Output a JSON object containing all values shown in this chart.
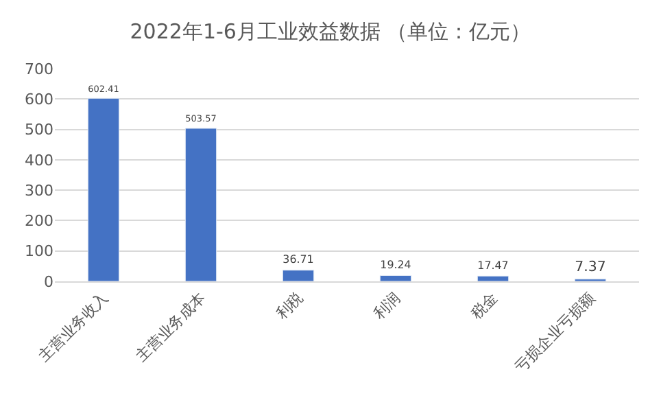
{
  "chart_data": {
    "type": "bar",
    "title": "2022年1-6月工业效益数据 （单位：亿元）",
    "categories": [
      "主营业务收入",
      "主营业务成本",
      "利税",
      "利润",
      "税金",
      "亏损企业亏损额"
    ],
    "values": [
      602.41,
      503.57,
      36.71,
      19.24,
      17.47,
      7.37
    ],
    "color": "#4472c4",
    "ylim": [
      0,
      700
    ],
    "yticks": [
      0,
      100,
      200,
      300,
      400,
      500,
      600,
      700
    ],
    "grid": "y",
    "data_labels": true,
    "legend": false
  }
}
